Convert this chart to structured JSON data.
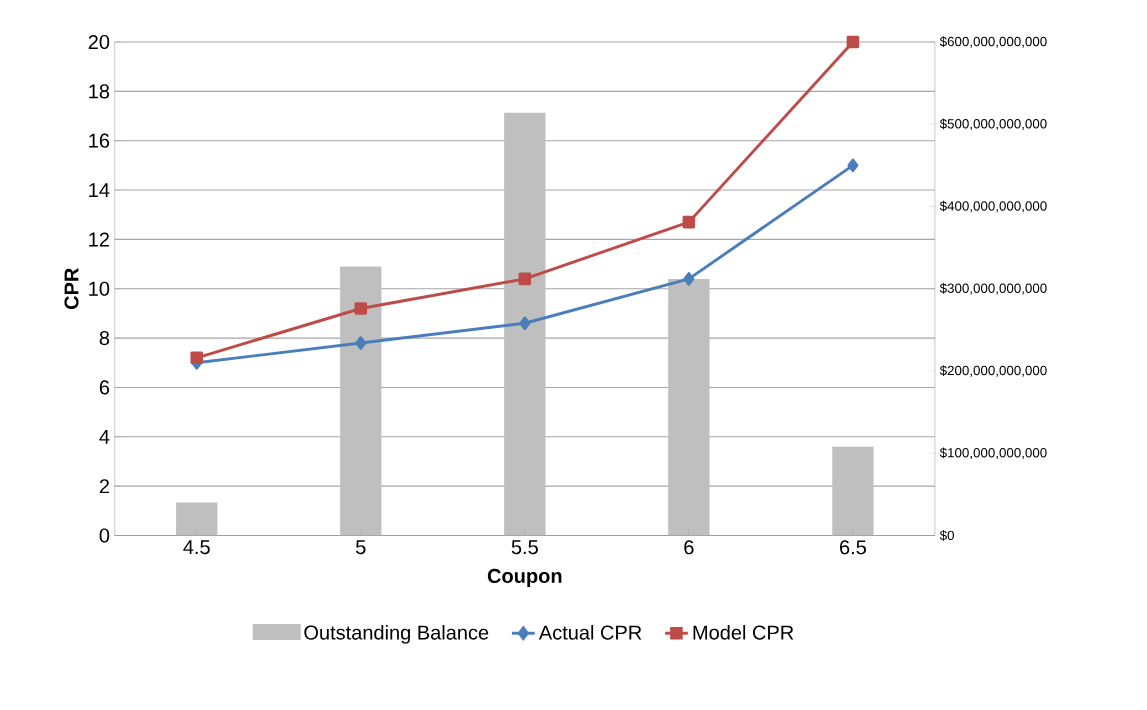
{
  "chart_data": {
    "type": "line",
    "categories": [
      "4.5",
      "5",
      "5.5",
      "6",
      "6.5"
    ],
    "xlabel": "Coupon",
    "ylabel": "CPR",
    "series": [
      {
        "name": "Outstanding Balance",
        "type": "bar",
        "axis": "y2",
        "color": "#bfbfbf",
        "values": [
          40000000000,
          327000000000,
          514000000000,
          312000000000,
          108000000000
        ]
      },
      {
        "name": "Actual CPR",
        "color": "#4a7ebb",
        "marker": "diamond",
        "values": [
          7.0,
          7.8,
          8.6,
          10.4,
          15.0
        ]
      },
      {
        "name": "Model CPR",
        "color": "#be4b48",
        "marker": "square",
        "values": [
          7.2,
          9.2,
          10.4,
          12.7,
          20.0
        ]
      }
    ],
    "ylim": [
      0,
      20
    ],
    "yticks": [
      0,
      2,
      4,
      6,
      8,
      10,
      12,
      14,
      16,
      18,
      20
    ],
    "y2lim": [
      0,
      600000000000
    ],
    "y2ticks": [
      {
        "value": 0,
        "label": "$0"
      },
      {
        "value": 100000000000,
        "label": "$100,000,000,000"
      },
      {
        "value": 200000000000,
        "label": "$200,000,000,000"
      },
      {
        "value": 300000000000,
        "label": "$300,000,000,000"
      },
      {
        "value": 400000000000,
        "label": "$400,000,000,000"
      },
      {
        "value": 500000000000,
        "label": "$500,000,000,000"
      },
      {
        "value": 600000000000,
        "label": "$600,000,000,000"
      }
    ],
    "grid": "y",
    "legend": "bottom"
  }
}
